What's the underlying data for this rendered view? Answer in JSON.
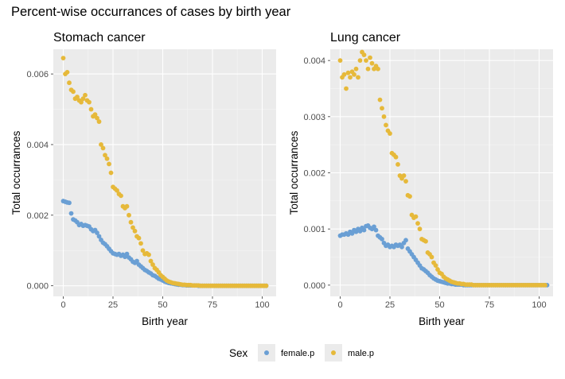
{
  "title": "Percent-wise occurrances of cases by birth year",
  "legend": {
    "title": "Sex",
    "entries": [
      {
        "label": "female.p",
        "color": "#6a9fd4"
      },
      {
        "label": "male.p",
        "color": "#e6b93a"
      }
    ],
    "placement": "bottom"
  },
  "chart_data": [
    {
      "type": "scatter",
      "title": "Stomach cancer",
      "xlabel": "Birth year",
      "ylabel": "Total occurrances",
      "xlim": [
        -5,
        107
      ],
      "ylim": [
        -0.0003,
        0.0067
      ],
      "xticks": [
        0,
        25,
        50,
        75,
        100
      ],
      "yticks": [
        0,
        0.002,
        0.004,
        0.006
      ],
      "ytick_labels": [
        "0.000",
        "0.002",
        "0.004",
        "0.006"
      ],
      "grid": true,
      "series": [
        {
          "name": "female.p",
          "color": "#6a9fd4",
          "x_start": 0,
          "x_step": 1,
          "values": [
            0.0024,
            0.00238,
            0.00236,
            0.00235,
            0.00205,
            0.00188,
            0.00185,
            0.0018,
            0.00172,
            0.00175,
            0.0017,
            0.00172,
            0.0017,
            0.00168,
            0.0016,
            0.00155,
            0.00158,
            0.0015,
            0.0014,
            0.0013,
            0.00122,
            0.00118,
            0.00112,
            0.00105,
            0.00098,
            0.00092,
            0.0009,
            0.00088,
            0.0009,
            0.00085,
            0.00088,
            0.00082,
            0.0009,
            0.0008,
            0.00075,
            0.00068,
            0.00065,
            0.0007,
            0.0006,
            0.00055,
            0.0005,
            0.00045,
            0.00042,
            0.00038,
            0.00035,
            0.0003,
            0.00028,
            0.00024,
            0.0002,
            0.00018,
            0.00015,
            0.00012,
            0.0001,
            8e-05,
            7e-05,
            6e-05,
            5e-05,
            4e-05,
            3e-05,
            3e-05,
            2e-05,
            2e-05,
            1e-05,
            1e-05,
            1e-05,
            1e-05,
            1e-05,
            1e-05,
            0,
            0,
            0,
            0,
            0,
            0,
            0,
            0,
            0,
            0,
            0,
            0,
            0,
            0,
            0,
            0,
            0,
            0,
            0,
            0,
            0,
            0,
            0,
            0,
            0,
            0,
            0,
            0,
            0,
            0,
            0,
            0,
            0,
            0,
            0
          ]
        },
        {
          "name": "male.p",
          "color": "#e6b93a",
          "x_start": 0,
          "x_step": 1,
          "values": [
            0.00645,
            0.006,
            0.00605,
            0.00575,
            0.00555,
            0.0055,
            0.0053,
            0.00535,
            0.00525,
            0.0052,
            0.0053,
            0.0054,
            0.00525,
            0.0052,
            0.005,
            0.0048,
            0.00485,
            0.00475,
            0.00465,
            0.004,
            0.0039,
            0.0037,
            0.0036,
            0.00345,
            0.0032,
            0.0028,
            0.00275,
            0.0027,
            0.0026,
            0.00255,
            0.00225,
            0.0022,
            0.00225,
            0.002,
            0.0018,
            0.00165,
            0.00155,
            0.0014,
            0.00135,
            0.0012,
            0.001,
            0.0009,
            0.00092,
            0.00088,
            0.0007,
            0.0006,
            0.0005,
            0.00045,
            0.00038,
            0.0003,
            0.00025,
            0.0002,
            0.00015,
            0.00012,
            0.0001,
            8e-05,
            7e-05,
            6e-05,
            5e-05,
            4e-05,
            3e-05,
            3e-05,
            2e-05,
            2e-05,
            2e-05,
            1e-05,
            1e-05,
            1e-05,
            1e-05,
            0,
            0,
            0,
            0,
            0,
            0,
            0,
            0,
            0,
            0,
            0,
            0,
            0,
            0,
            0,
            0,
            0,
            0,
            0,
            0,
            0,
            0,
            0,
            0,
            0,
            0,
            0,
            0,
            0,
            0,
            0,
            0,
            0,
            0
          ]
        }
      ]
    },
    {
      "type": "scatter",
      "title": "Lung cancer",
      "xlabel": "Birth year",
      "ylabel": "Total occurrances",
      "xlim": [
        -5,
        107
      ],
      "ylim": [
        -0.0002,
        0.0042
      ],
      "xticks": [
        0,
        25,
        50,
        75,
        100
      ],
      "yticks": [
        0,
        0.001,
        0.002,
        0.003,
        0.004
      ],
      "ytick_labels": [
        "0.000",
        "0.001",
        "0.002",
        "0.003",
        "0.004"
      ],
      "grid": true,
      "series": [
        {
          "name": "female.p",
          "color": "#6a9fd4",
          "x_start": 0,
          "x_step": 1,
          "values": [
            0.00088,
            0.0009,
            0.0009,
            0.00092,
            0.0009,
            0.00095,
            0.00092,
            0.00098,
            0.00095,
            0.001,
            0.00096,
            0.00102,
            0.00098,
            0.00105,
            0.00106,
            0.00102,
            0.001,
            0.00104,
            0.00098,
            0.00088,
            0.00085,
            0.00082,
            0.00075,
            0.0007,
            0.00072,
            0.00068,
            0.0007,
            0.00068,
            0.00072,
            0.0007,
            0.00072,
            0.00068,
            0.00075,
            0.0008,
            0.00065,
            0.0006,
            0.00055,
            0.0005,
            0.00045,
            0.0004,
            0.00035,
            0.0003,
            0.00028,
            0.00025,
            0.00022,
            0.00018,
            0.00015,
            0.00012,
            0.0001,
            8e-05,
            7e-05,
            6e-05,
            5e-05,
            4e-05,
            3e-05,
            3e-05,
            2e-05,
            2e-05,
            1e-05,
            1e-05,
            1e-05,
            1e-05,
            0,
            0,
            0,
            0,
            0,
            0,
            0,
            0,
            0,
            0,
            0,
            0,
            0,
            0,
            0,
            0,
            0,
            0,
            0,
            0,
            0,
            0,
            0,
            0,
            0,
            0,
            0,
            0,
            0,
            0,
            0,
            0,
            0,
            0,
            0,
            0,
            0,
            0,
            0,
            0,
            0,
            0,
            0
          ]
        },
        {
          "name": "male.p",
          "color": "#e6b93a",
          "x_start": 0,
          "x_step": 1,
          "values": [
            0.004,
            0.0037,
            0.00375,
            0.0035,
            0.00378,
            0.0037,
            0.0038,
            0.00375,
            0.00385,
            0.0037,
            0.004,
            0.00415,
            0.0041,
            0.004,
            0.00385,
            0.00405,
            0.00395,
            0.00385,
            0.0039,
            0.00385,
            0.0033,
            0.00315,
            0.003,
            0.00285,
            0.00275,
            0.0027,
            0.00235,
            0.00232,
            0.00228,
            0.00215,
            0.00195,
            0.0019,
            0.00195,
            0.00185,
            0.0016,
            0.00158,
            0.00125,
            0.0012,
            0.00122,
            0.0011,
            0.001,
            0.00082,
            0.0008,
            0.00078,
            0.00058,
            0.00055,
            0.0005,
            0.0004,
            0.00035,
            0.00028,
            0.00022,
            0.0002,
            0.00015,
            0.00012,
            0.0001,
            8e-05,
            6e-05,
            5e-05,
            4e-05,
            3e-05,
            3e-05,
            2e-05,
            2e-05,
            1e-05,
            1e-05,
            1e-05,
            1e-05,
            0,
            0,
            0,
            0,
            0,
            0,
            0,
            0,
            0,
            0,
            0,
            0,
            0,
            0,
            0,
            0,
            0,
            0,
            0,
            0,
            0,
            0,
            0,
            0,
            0,
            0,
            0,
            0,
            0,
            0,
            0,
            0,
            0,
            0,
            0,
            0,
            0
          ]
        }
      ]
    }
  ]
}
